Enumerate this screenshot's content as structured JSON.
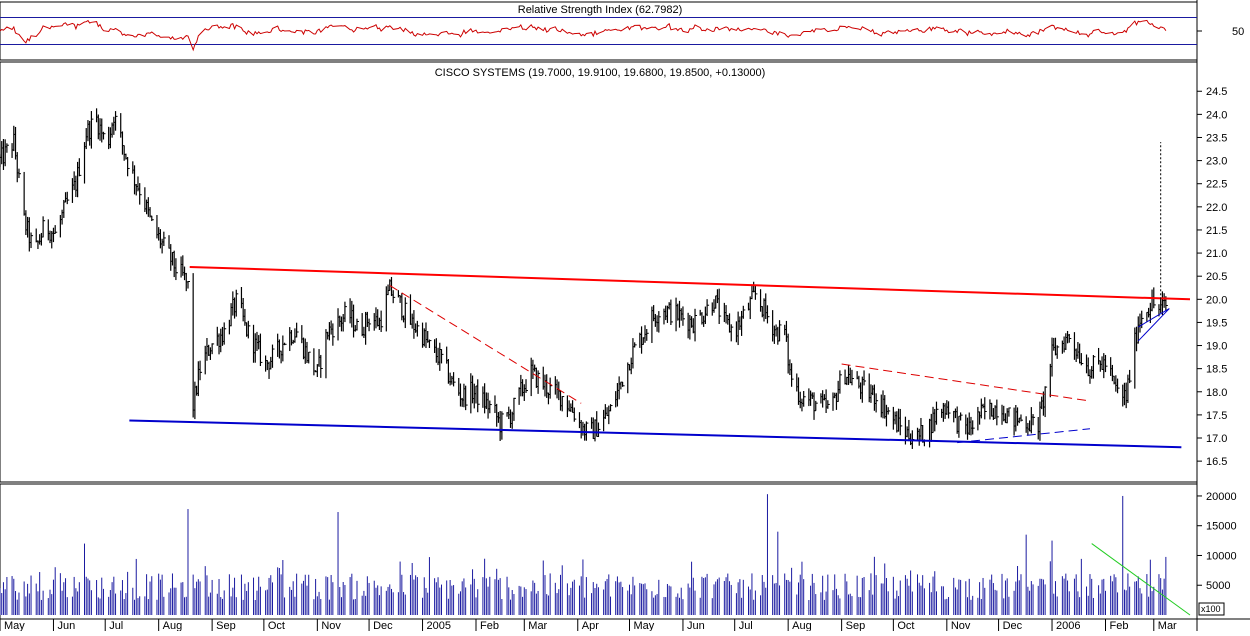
{
  "chart_data": [
    {
      "type": "line",
      "title": "Relative Strength Index (62.7982)",
      "yticks": [
        50
      ],
      "levels": [
        70,
        30
      ],
      "ylim": [
        10,
        90
      ],
      "series_color": "#cc0000",
      "level_color": "#1a1aa0"
    },
    {
      "type": "bar",
      "subtype": "hlc-price-bars",
      "title": "CISCO SYSTEMS (19.7000, 19.9100, 19.6800, 19.8500, +0.13000)",
      "ylim": [
        16.2,
        24.7
      ],
      "yticks": [
        "24.5",
        "24.0",
        "23.5",
        "23.0",
        "22.5",
        "22.0",
        "21.5",
        "21.0",
        "20.5",
        "20.0",
        "19.5",
        "19.0",
        "18.5",
        "18.0",
        "17.5",
        "17.0",
        "16.5"
      ],
      "xtick_labels": [
        "May",
        "Jun",
        "Jul",
        "Aug",
        "Sep",
        "Oct",
        "Nov",
        "Dec",
        "2005",
        "Feb",
        "Mar",
        "Apr",
        "May",
        "Jun",
        "Jul",
        "Aug",
        "Sep",
        "Oct",
        "Nov",
        "Dec",
        "2006",
        "Feb",
        "Mar"
      ],
      "xlim_days": [
        0,
        690
      ],
      "xtick_days": [
        0,
        31,
        61,
        92,
        123,
        153,
        184,
        214,
        245,
        276,
        304,
        335,
        365,
        396,
        426,
        457,
        488,
        518,
        549,
        579,
        610,
        641,
        669
      ],
      "bar_color": "#000000",
      "path": [
        [
          0,
          23.0
        ],
        [
          8,
          23.4
        ],
        [
          14,
          21.7
        ],
        [
          20,
          21.0
        ],
        [
          26,
          21.6
        ],
        [
          32,
          21.4
        ],
        [
          38,
          22.0
        ],
        [
          44,
          22.5
        ],
        [
          50,
          23.6
        ],
        [
          56,
          23.9
        ],
        [
          62,
          23.3
        ],
        [
          66,
          24.0
        ],
        [
          72,
          23.2
        ],
        [
          78,
          22.6
        ],
        [
          82,
          22.3
        ],
        [
          88,
          21.6
        ],
        [
          94,
          21.2
        ],
        [
          100,
          20.8
        ],
        [
          103,
          20.6
        ],
        [
          106,
          20.5
        ],
        [
          110,
          20.2
        ],
        [
          112,
          17.7
        ],
        [
          116,
          18.5
        ],
        [
          122,
          19.0
        ],
        [
          130,
          19.3
        ],
        [
          134,
          19.7
        ],
        [
          138,
          20.0
        ],
        [
          142,
          19.4
        ],
        [
          148,
          19.0
        ],
        [
          154,
          18.6
        ],
        [
          160,
          18.8
        ],
        [
          166,
          19.2
        ],
        [
          172,
          19.3
        ],
        [
          178,
          18.8
        ],
        [
          184,
          18.4
        ],
        [
          190,
          19.3
        ],
        [
          196,
          19.5
        ],
        [
          202,
          19.7
        ],
        [
          208,
          19.3
        ],
        [
          214,
          19.6
        ],
        [
          220,
          19.5
        ],
        [
          226,
          20.2
        ],
        [
          232,
          19.9
        ],
        [
          238,
          19.5
        ],
        [
          244,
          19.3
        ],
        [
          250,
          18.9
        ],
        [
          256,
          18.7
        ],
        [
          262,
          18.2
        ],
        [
          268,
          17.9
        ],
        [
          274,
          18.0
        ],
        [
          280,
          17.8
        ],
        [
          286,
          17.6
        ],
        [
          290,
          17.3
        ],
        [
          296,
          17.5
        ],
        [
          302,
          18.0
        ],
        [
          308,
          18.4
        ],
        [
          314,
          18.2
        ],
        [
          320,
          18.0
        ],
        [
          326,
          17.9
        ],
        [
          332,
          17.6
        ],
        [
          338,
          17.2
        ],
        [
          342,
          17.1
        ],
        [
          348,
          17.3
        ],
        [
          354,
          17.6
        ],
        [
          360,
          18.2
        ],
        [
          366,
          18.8
        ],
        [
          372,
          19.2
        ],
        [
          378,
          19.6
        ],
        [
          384,
          19.8
        ],
        [
          390,
          19.7
        ],
        [
          396,
          19.6
        ],
        [
          402,
          19.5
        ],
        [
          408,
          19.7
        ],
        [
          414,
          20.0
        ],
        [
          420,
          19.5
        ],
        [
          426,
          19.3
        ],
        [
          432,
          19.7
        ],
        [
          438,
          20.1
        ],
        [
          444,
          19.7
        ],
        [
          450,
          19.3
        ],
        [
          455,
          19.3
        ],
        [
          458,
          18.4
        ],
        [
          464,
          17.9
        ],
        [
          470,
          17.8
        ],
        [
          476,
          17.7
        ],
        [
          482,
          17.6
        ],
        [
          486,
          18.1
        ],
        [
          490,
          18.4
        ],
        [
          496,
          18.2
        ],
        [
          502,
          18.0
        ],
        [
          508,
          17.9
        ],
        [
          514,
          17.6
        ],
        [
          520,
          17.3
        ],
        [
          526,
          17.1
        ],
        [
          532,
          17.0
        ],
        [
          538,
          17.2
        ],
        [
          544,
          17.6
        ],
        [
          550,
          17.7
        ],
        [
          556,
          17.3
        ],
        [
          562,
          17.2
        ],
        [
          568,
          17.5
        ],
        [
          574,
          17.6
        ],
        [
          580,
          17.7
        ],
        [
          586,
          17.4
        ],
        [
          592,
          17.4
        ],
        [
          598,
          17.3
        ],
        [
          602,
          17.3
        ],
        [
          606,
          18.0
        ],
        [
          610,
          18.8
        ],
        [
          614,
          19.0
        ],
        [
          620,
          19.2
        ],
        [
          626,
          18.8
        ],
        [
          632,
          18.5
        ],
        [
          638,
          18.6
        ],
        [
          642,
          18.6
        ],
        [
          646,
          18.1
        ],
        [
          650,
          17.9
        ],
        [
          653,
          17.9
        ],
        [
          660,
          19.5
        ],
        [
          664,
          19.8
        ],
        [
          668,
          19.9
        ],
        [
          672,
          19.8
        ],
        [
          676,
          19.85
        ]
      ],
      "annotations": [
        {
          "kind": "resistance",
          "color": "#ff0000",
          "width": 2,
          "dash": "",
          "from": [
            110,
            20.7
          ],
          "to": [
            690,
            20.0
          ]
        },
        {
          "kind": "support",
          "color": "#0000cc",
          "width": 2,
          "dash": "",
          "from": [
            75,
            17.38
          ],
          "to": [
            685,
            16.8
          ]
        },
        {
          "kind": "downtrend",
          "color": "#dd0000",
          "width": 1,
          "dash": "9,5",
          "from": [
            226,
            20.3
          ],
          "to": [
            337,
            17.75
          ]
        },
        {
          "kind": "downtrend",
          "color": "#dd0000",
          "width": 1,
          "dash": "9,5",
          "from": [
            488,
            18.6
          ],
          "to": [
            632,
            17.8
          ]
        },
        {
          "kind": "uptrend",
          "color": "#0000cc",
          "width": 1,
          "dash": "9,5",
          "from": [
            555,
            16.9
          ],
          "to": [
            632,
            17.2
          ]
        },
        {
          "kind": "triangle",
          "color": "#0000cc",
          "width": 1,
          "dash": "",
          "from": [
            660,
            19.1
          ],
          "to": [
            678,
            19.8
          ]
        },
        {
          "kind": "triangle",
          "color": "#0000cc",
          "width": 1,
          "dash": "",
          "from": [
            660,
            19.4
          ],
          "to": [
            678,
            19.8
          ]
        },
        {
          "kind": "target",
          "color": "#000000",
          "width": 1,
          "dash": "2,2",
          "from": [
            673,
            20.0
          ],
          "to": [
            673,
            23.4
          ]
        }
      ]
    },
    {
      "type": "bar",
      "subtype": "volume",
      "ylim": [
        0,
        21000
      ],
      "yticks": [
        "20000",
        "15000",
        "10000",
        "5000"
      ],
      "unit_label": "x100",
      "bar_color": "#1a1aa0",
      "spikes": [
        [
          50,
          12000
        ],
        [
          110,
          17800
        ],
        [
          195,
          17300
        ],
        [
          446,
          20300
        ],
        [
          452,
          14000
        ],
        [
          596,
          13500
        ],
        [
          611,
          12500
        ],
        [
          652,
          20000
        ]
      ],
      "annotations": [
        {
          "kind": "volume-downtrend",
          "color": "#22cc22",
          "width": 1,
          "dash": "",
          "from": [
            633,
            12000
          ],
          "to": [
            690,
            0
          ]
        }
      ]
    }
  ]
}
